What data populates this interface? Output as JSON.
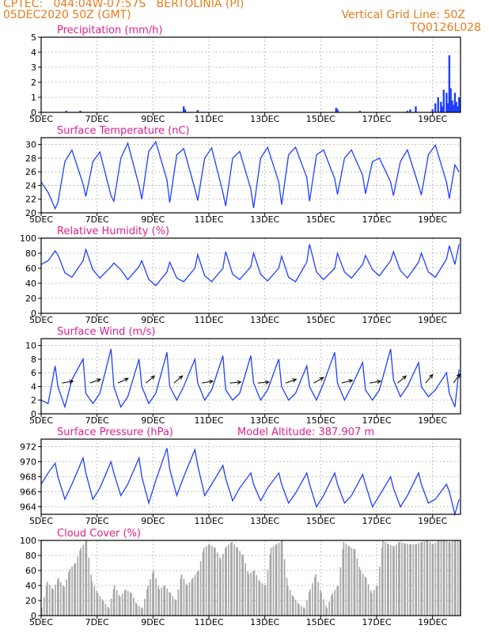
{
  "header": {
    "line1": "CPTEC:   044:04W-07:57S   BERTOLINIA (PI)",
    "line2_left": "05DEC2020 50Z (GMT)",
    "line2_right": "Vertical Grid Line: 50Z",
    "line3_right": "TQ0126L028"
  },
  "colors": {
    "header": "#e87b1e",
    "panel_title": "#e0208a",
    "series": "#1f3fff",
    "cloud_fill": "#a6a6a6",
    "frame": "#000000",
    "grid": "#9a9a9a"
  },
  "x_axis": {
    "tick_labels": [
      "5DEC",
      "7DEC",
      "9DEC",
      "11DEC",
      "13DEC",
      "15DEC",
      "17DEC",
      "19DEC"
    ],
    "tick_days": [
      5,
      7,
      9,
      11,
      13,
      15,
      17,
      19
    ],
    "range_days": [
      5,
      20
    ]
  },
  "chart_data": [
    {
      "id": "precip",
      "type": "bar",
      "title": "Precipitation  (mm/h)",
      "ylim": [
        0,
        5
      ],
      "yticks": [
        0,
        1,
        2,
        3,
        4,
        5
      ],
      "ytick_labels": [
        "0",
        "1",
        "2",
        "3",
        "4",
        "5"
      ],
      "grid": true,
      "x": [
        5.9,
        6.4,
        10.1,
        10.15,
        10.6,
        15.55,
        15.6,
        16.4,
        18.1,
        18.2,
        18.4,
        19.0,
        19.1,
        19.2,
        19.3,
        19.35,
        19.4,
        19.5,
        19.55,
        19.6,
        19.65,
        19.7,
        19.75,
        19.8,
        19.85,
        19.9,
        19.95
      ],
      "values": [
        0.1,
        0.1,
        0.4,
        0.2,
        0.15,
        0.3,
        0.2,
        0.1,
        0.1,
        0.2,
        0.4,
        0.2,
        0.6,
        1.0,
        0.7,
        0.4,
        1.5,
        1.3,
        0.6,
        3.8,
        1.6,
        0.8,
        0.5,
        1.3,
        0.7,
        0.4,
        1.0
      ]
    },
    {
      "id": "temp",
      "type": "line",
      "title": "Surface Temperature (nC)",
      "ylim": [
        20,
        31
      ],
      "yticks": [
        20,
        22,
        24,
        26,
        28,
        30
      ],
      "ytick_labels": [
        "20",
        "22",
        "24",
        "26",
        "28",
        "30"
      ],
      "grid": true,
      "x": [
        5.0,
        5.25,
        5.5,
        5.6,
        5.85,
        6.1,
        6.5,
        6.6,
        6.85,
        7.1,
        7.5,
        7.6,
        7.85,
        8.1,
        8.5,
        8.6,
        8.85,
        9.1,
        9.5,
        9.6,
        9.85,
        10.1,
        10.5,
        10.6,
        10.85,
        11.1,
        11.5,
        11.6,
        11.85,
        12.1,
        12.5,
        12.6,
        12.85,
        13.1,
        13.5,
        13.6,
        13.85,
        14.1,
        14.5,
        14.6,
        14.85,
        15.1,
        15.5,
        15.6,
        15.85,
        16.1,
        16.5,
        16.6,
        16.85,
        17.1,
        17.5,
        17.6,
        17.85,
        18.1,
        18.5,
        18.6,
        18.85,
        19.1,
        19.5,
        19.6,
        19.8,
        19.95
      ],
      "values": [
        24.5,
        23.0,
        20.6,
        21.5,
        27.5,
        29.2,
        24.2,
        22.4,
        27.5,
        28.9,
        22.5,
        21.7,
        28.0,
        30.2,
        24.0,
        22.0,
        29.0,
        30.4,
        24.8,
        21.5,
        28.5,
        29.4,
        23.5,
        21.8,
        28.0,
        29.5,
        23.0,
        21.0,
        28.0,
        29.0,
        23.5,
        20.7,
        28.0,
        29.6,
        24.5,
        21.2,
        28.5,
        29.6,
        25.2,
        21.7,
        28.5,
        29.2,
        25.0,
        22.7,
        28.0,
        29.2,
        25.5,
        22.8,
        27.5,
        28.0,
        24.5,
        22.5,
        27.5,
        29.2,
        24.0,
        22.6,
        28.5,
        29.9,
        24.5,
        22.1,
        27.0,
        26.0
      ]
    },
    {
      "id": "rh",
      "type": "line",
      "title": "Relative Humidity (%)",
      "ylim": [
        0,
        100
      ],
      "yticks": [
        0,
        20,
        40,
        60,
        80,
        100
      ],
      "ytick_labels": [
        "0",
        "20",
        "40",
        "60",
        "80",
        "100"
      ],
      "grid": true,
      "x": [
        5.0,
        5.25,
        5.5,
        5.6,
        5.85,
        6.1,
        6.5,
        6.6,
        6.85,
        7.1,
        7.5,
        7.6,
        7.85,
        8.1,
        8.5,
        8.6,
        8.85,
        9.1,
        9.5,
        9.6,
        9.85,
        10.1,
        10.5,
        10.6,
        10.85,
        11.1,
        11.5,
        11.6,
        11.85,
        12.1,
        12.5,
        12.6,
        12.85,
        13.1,
        13.5,
        13.6,
        13.85,
        14.1,
        14.5,
        14.6,
        14.85,
        15.1,
        15.5,
        15.6,
        15.85,
        16.1,
        16.5,
        16.6,
        16.85,
        17.1,
        17.5,
        17.6,
        17.85,
        18.1,
        18.5,
        18.6,
        18.85,
        19.1,
        19.5,
        19.6,
        19.8,
        19.95
      ],
      "values": [
        65,
        70,
        83,
        78,
        54,
        48,
        70,
        85,
        58,
        47,
        62,
        67,
        58,
        45,
        62,
        70,
        45,
        37,
        55,
        68,
        47,
        42,
        60,
        78,
        50,
        42,
        60,
        82,
        52,
        45,
        62,
        80,
        52,
        43,
        60,
        76,
        48,
        42,
        68,
        92,
        55,
        45,
        60,
        80,
        55,
        47,
        65,
        77,
        58,
        50,
        70,
        82,
        57,
        47,
        68,
        80,
        55,
        48,
        72,
        90,
        65,
        92
      ]
    },
    {
      "id": "wind",
      "type": "line",
      "title": "Surface Wind (m/s)",
      "ylim": [
        0,
        11
      ],
      "yticks": [
        0,
        2,
        4,
        6,
        8,
        10
      ],
      "ytick_labels": [
        "0",
        "2",
        "4",
        "6",
        "8",
        "10"
      ],
      "grid": true,
      "x": [
        5.0,
        5.25,
        5.5,
        5.6,
        5.85,
        6.1,
        6.5,
        6.6,
        6.85,
        7.1,
        7.5,
        7.6,
        7.85,
        8.1,
        8.5,
        8.6,
        8.85,
        9.1,
        9.5,
        9.6,
        9.85,
        10.1,
        10.5,
        10.6,
        10.85,
        11.1,
        11.5,
        11.6,
        11.85,
        12.1,
        12.5,
        12.6,
        12.85,
        13.1,
        13.5,
        13.6,
        13.85,
        14.1,
        14.5,
        14.6,
        14.85,
        15.1,
        15.5,
        15.6,
        15.85,
        16.1,
        16.5,
        16.6,
        16.85,
        17.1,
        17.5,
        17.6,
        17.85,
        18.1,
        18.5,
        18.6,
        18.85,
        19.1,
        19.5,
        19.6,
        19.8,
        19.95
      ],
      "values": [
        2.0,
        1.5,
        7.0,
        4.0,
        1.0,
        5.0,
        8.0,
        3.0,
        1.5,
        3.0,
        9.5,
        4.0,
        1.0,
        2.5,
        8.0,
        4.0,
        1.5,
        3.0,
        9.0,
        4.0,
        2.0,
        4.0,
        8.0,
        4.5,
        2.0,
        3.5,
        8.5,
        3.5,
        2.0,
        3.0,
        8.5,
        4.5,
        2.0,
        3.5,
        8.0,
        4.0,
        2.0,
        3.0,
        7.0,
        4.0,
        2.0,
        4.5,
        9.0,
        4.5,
        2.0,
        4.0,
        7.5,
        3.5,
        2.0,
        3.5,
        9.5,
        5.0,
        2.5,
        4.0,
        7.5,
        4.0,
        2.5,
        3.5,
        6.0,
        3.0,
        1.0,
        6.5
      ],
      "wind_barbs_day": [
        5.75,
        6.75,
        7.75,
        8.75,
        9.75,
        10.75,
        11.75,
        12.75,
        13.75,
        14.75,
        15.75,
        16.75,
        17.75,
        18.75,
        19.75
      ],
      "wind_barbs_dir": [
        260,
        250,
        245,
        230,
        230,
        260,
        265,
        265,
        250,
        240,
        255,
        260,
        230,
        220,
        215
      ]
    },
    {
      "id": "pres",
      "type": "line",
      "title": "Surface Pressure (hPa)",
      "ylim": [
        963,
        973
      ],
      "yticks": [
        964,
        966,
        968,
        970,
        972
      ],
      "ytick_labels": [
        "964",
        "966",
        "968",
        "970",
        "972"
      ],
      "grid": true,
      "x": [
        5.0,
        5.25,
        5.5,
        5.6,
        5.85,
        6.1,
        6.5,
        6.6,
        6.85,
        7.1,
        7.5,
        7.6,
        7.85,
        8.1,
        8.5,
        8.6,
        8.85,
        9.1,
        9.5,
        9.6,
        9.85,
        10.1,
        10.5,
        10.6,
        10.85,
        11.1,
        11.5,
        11.6,
        11.85,
        12.1,
        12.5,
        12.6,
        12.85,
        13.1,
        13.5,
        13.6,
        13.85,
        14.1,
        14.5,
        14.6,
        14.85,
        15.1,
        15.5,
        15.6,
        15.85,
        16.1,
        16.5,
        16.6,
        16.85,
        17.1,
        17.5,
        17.6,
        17.85,
        18.1,
        18.5,
        18.6,
        18.85,
        19.1,
        19.5,
        19.6,
        19.8,
        19.95
      ],
      "values": [
        967.0,
        968.5,
        969.8,
        968.0,
        965.0,
        967.0,
        970.5,
        968.5,
        965.0,
        966.5,
        970.0,
        968.5,
        965.5,
        967.0,
        970.5,
        968.0,
        964.5,
        967.5,
        971.8,
        969.0,
        965.5,
        968.0,
        971.6,
        969.5,
        965.5,
        967.0,
        969.5,
        967.8,
        964.8,
        966.5,
        968.5,
        967.0,
        964.8,
        966.5,
        968.5,
        967.0,
        964.5,
        965.8,
        968.5,
        967.0,
        964.0,
        965.5,
        968.5,
        967.0,
        964.5,
        965.5,
        968.3,
        967.0,
        964.0,
        965.5,
        968.0,
        966.5,
        964.0,
        965.5,
        968.5,
        967.0,
        964.5,
        965.0,
        967.0,
        966.0,
        963.0,
        965.0
      ]
    },
    {
      "id": "cloud",
      "type": "area",
      "title": "Cloud Cover (%)",
      "ylim": [
        0,
        100
      ],
      "yticks": [
        0,
        20,
        40,
        60,
        80,
        100
      ],
      "ytick_labels": [
        "0",
        "20",
        "40",
        "60",
        "80",
        "100"
      ],
      "grid": true,
      "x": [
        5.0,
        5.2,
        5.4,
        5.6,
        5.8,
        6.0,
        6.2,
        6.4,
        6.6,
        6.8,
        7.0,
        7.2,
        7.4,
        7.6,
        7.8,
        8.0,
        8.2,
        8.4,
        8.6,
        8.8,
        9.0,
        9.2,
        9.4,
        9.6,
        9.8,
        10.0,
        10.2,
        10.4,
        10.6,
        10.8,
        11.0,
        11.2,
        11.4,
        11.6,
        11.8,
        12.0,
        12.2,
        12.4,
        12.6,
        12.8,
        13.0,
        13.2,
        13.4,
        13.6,
        13.8,
        14.0,
        14.2,
        14.4,
        14.6,
        14.8,
        15.0,
        15.2,
        15.4,
        15.6,
        15.8,
        16.0,
        16.2,
        16.4,
        16.6,
        16.8,
        17.0,
        17.2,
        17.4,
        17.6,
        17.8,
        18.0,
        18.2,
        18.4,
        18.6,
        18.8,
        19.0,
        19.2,
        19.4,
        19.6,
        19.8,
        20.0
      ],
      "values": [
        10,
        45,
        35,
        50,
        38,
        62,
        70,
        90,
        100,
        45,
        30,
        20,
        10,
        40,
        25,
        35,
        30,
        15,
        10,
        40,
        60,
        35,
        40,
        30,
        20,
        55,
        40,
        50,
        60,
        90,
        95,
        90,
        75,
        92,
        98,
        90,
        80,
        55,
        60,
        45,
        40,
        90,
        95,
        100,
        40,
        25,
        15,
        10,
        35,
        55,
        30,
        10,
        30,
        40,
        98,
        92,
        88,
        60,
        50,
        30,
        40,
        100,
        95,
        92,
        98,
        96,
        95,
        95,
        98,
        100,
        95,
        100,
        100,
        98,
        100,
        100
      ]
    }
  ],
  "panels_extra": {
    "pressure_model_altitude": "Model Altitude: 387.907 m"
  }
}
